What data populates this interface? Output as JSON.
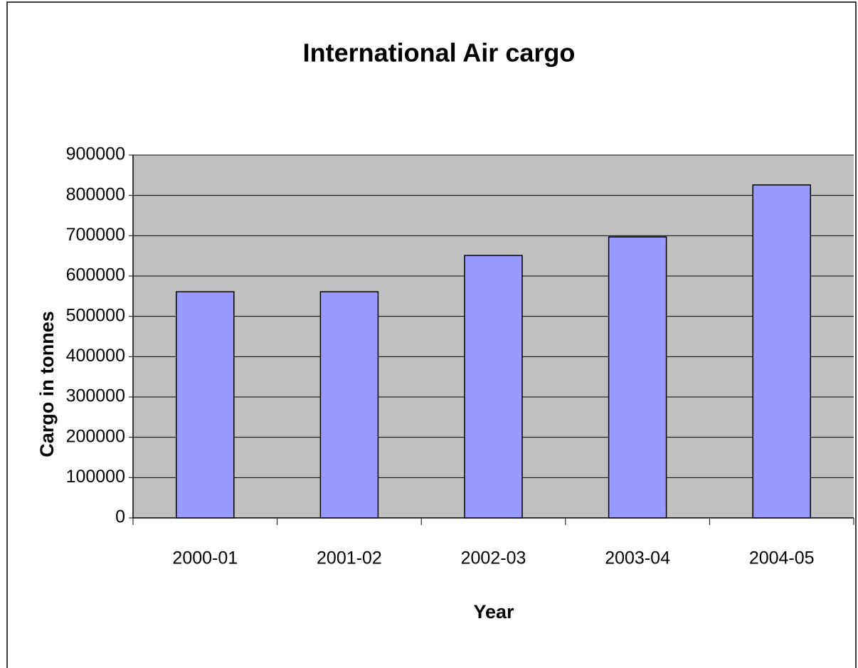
{
  "chart_data": {
    "type": "bar",
    "title": "International Air cargo",
    "x_label": "Year",
    "y_label": "Cargo in tonnes",
    "categories": [
      "2000-01",
      "2001-02",
      "2002-03",
      "2003-04",
      "2004-05"
    ],
    "values": [
      561000,
      561000,
      651000,
      697000,
      826000
    ],
    "color": "#9999ff",
    "ylim": [
      0,
      900000
    ],
    "yticks": [
      0,
      100000,
      200000,
      300000,
      400000,
      500000,
      600000,
      700000,
      800000,
      900000
    ],
    "grid": true
  }
}
